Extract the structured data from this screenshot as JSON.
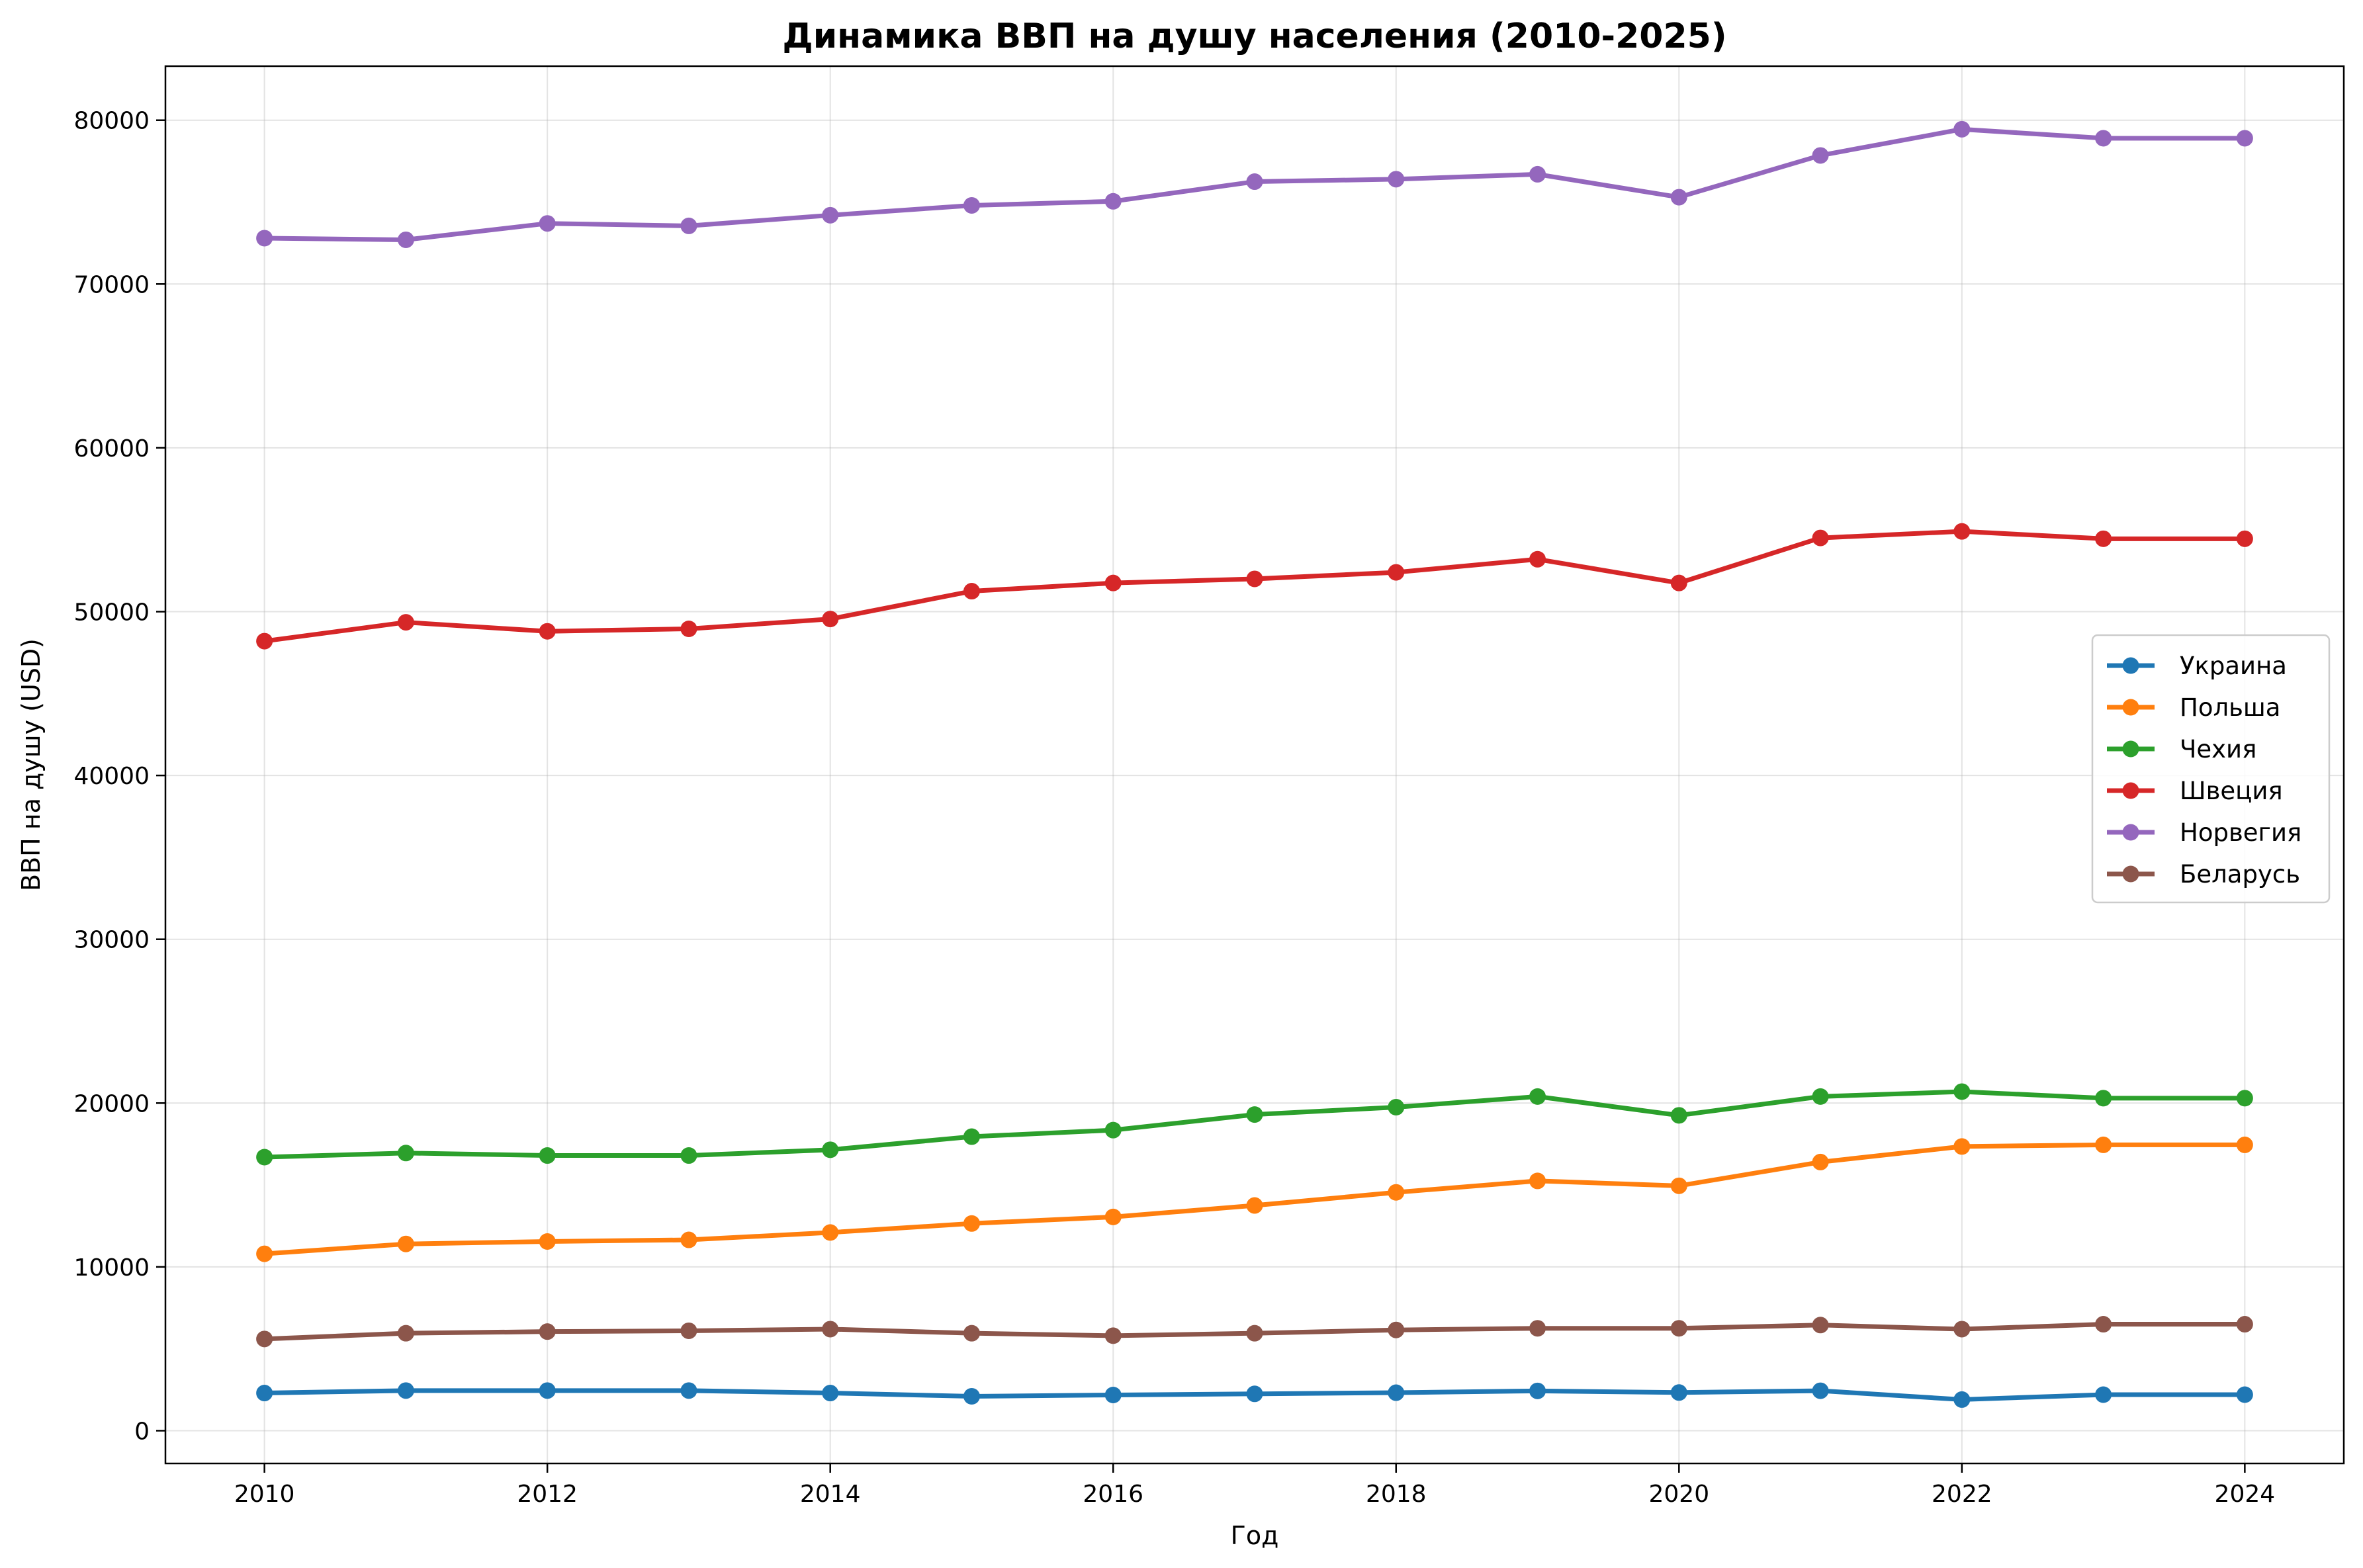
{
  "chart_data": {
    "type": "line",
    "title": "Динамика ВВП на душу населения (2010-2025)",
    "xlabel": "Год",
    "ylabel": "ВВП на душу (USD)",
    "xlim": [
      2009.3,
      2024.7
    ],
    "ylim": [
      -2000,
      83300
    ],
    "x_ticks": [
      2010,
      2012,
      2014,
      2016,
      2018,
      2020,
      2022,
      2024
    ],
    "y_ticks": [
      0,
      10000,
      20000,
      30000,
      40000,
      50000,
      60000,
      70000,
      80000
    ],
    "grid": true,
    "legend_position": "center-right",
    "x": [
      2010,
      2011,
      2012,
      2013,
      2014,
      2015,
      2016,
      2017,
      2018,
      2019,
      2020,
      2021,
      2022,
      2023,
      2024
    ],
    "series": [
      {
        "name": "Украина",
        "color": "#1f77b4",
        "values": [
          2300,
          2450,
          2450,
          2450,
          2300,
          2100,
          2180,
          2250,
          2320,
          2430,
          2330,
          2440,
          1900,
          2200,
          2200
        ]
      },
      {
        "name": "Польша",
        "color": "#ff7f0e",
        "values": [
          10800,
          11400,
          11550,
          11650,
          12100,
          12650,
          13050,
          13750,
          14550,
          15250,
          14950,
          16400,
          17350,
          17450,
          17450
        ]
      },
      {
        "name": "Чехия",
        "color": "#2ca02c",
        "values": [
          16700,
          16950,
          16800,
          16800,
          17150,
          17950,
          18350,
          19300,
          19750,
          20400,
          19250,
          20400,
          20700,
          20300,
          20300
        ]
      },
      {
        "name": "Швеция",
        "color": "#d62728",
        "values": [
          48200,
          49350,
          48800,
          48950,
          49550,
          51250,
          51750,
          52000,
          52400,
          53200,
          51750,
          54500,
          54900,
          54450,
          54450
        ]
      },
      {
        "name": "Норвегия",
        "color": "#9467bd",
        "values": [
          72800,
          72700,
          73700,
          73550,
          74200,
          74800,
          75050,
          76250,
          76400,
          76700,
          75300,
          77850,
          79450,
          78900,
          78900
        ]
      },
      {
        "name": "Беларусь",
        "color": "#8c564b",
        "values": [
          5600,
          5950,
          6050,
          6100,
          6200,
          5950,
          5800,
          5950,
          6150,
          6250,
          6250,
          6450,
          6200,
          6500,
          6500
        ]
      }
    ]
  }
}
